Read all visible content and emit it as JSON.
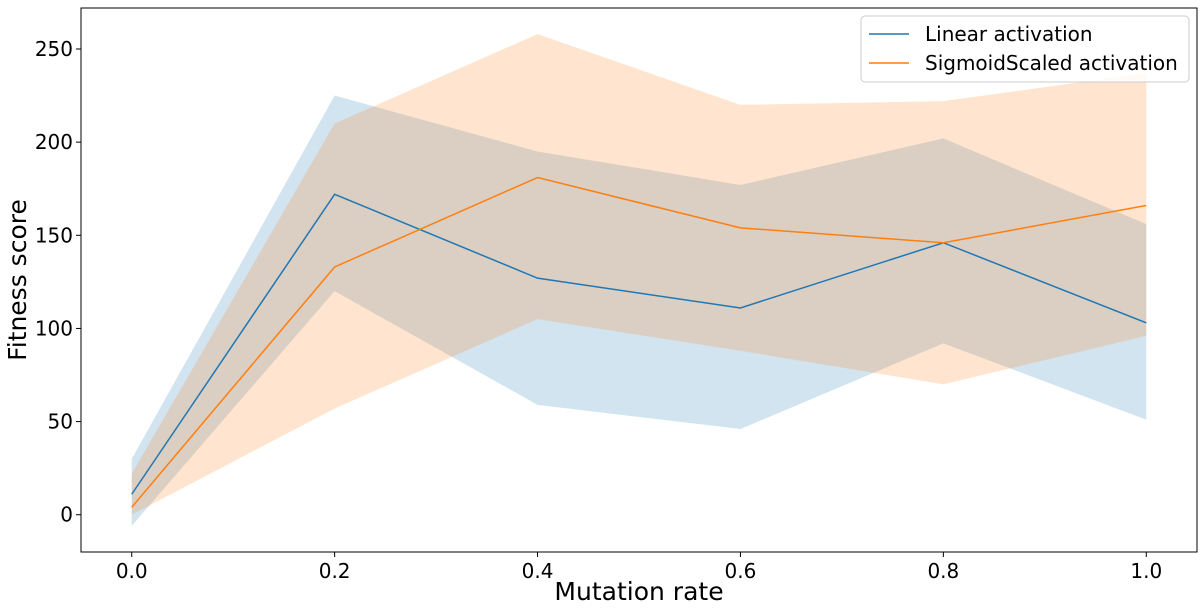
{
  "chart_data": {
    "type": "line",
    "title": "",
    "xlabel": "Mutation rate",
    "ylabel": "Fitness score",
    "x": [
      0.0,
      0.2,
      0.4,
      0.6,
      0.8,
      1.0
    ],
    "xlim": [
      -0.05,
      1.05
    ],
    "ylim": [
      -20,
      272
    ],
    "xticks": [
      0.0,
      0.2,
      0.4,
      0.6,
      0.8,
      1.0
    ],
    "xtick_labels": [
      "0.0",
      "0.2",
      "0.4",
      "0.6",
      "0.8",
      "1.0"
    ],
    "yticks": [
      0,
      50,
      100,
      150,
      200,
      250
    ],
    "ytick_labels": [
      "0",
      "50",
      "100",
      "150",
      "200",
      "250"
    ],
    "grid": false,
    "legend": {
      "placement": "top-right"
    },
    "series": [
      {
        "name": "Linear activation",
        "color": "#1f77b4",
        "values": [
          11,
          172,
          127,
          111,
          146,
          103
        ],
        "lower": [
          -6,
          120,
          59,
          46,
          92,
          51
        ],
        "upper": [
          30,
          225,
          195,
          177,
          202,
          156
        ]
      },
      {
        "name": "SigmoidScaled activation",
        "color": "#ff7f0e",
        "values": [
          4,
          133,
          181,
          154,
          146,
          166
        ],
        "lower": [
          0,
          57,
          105,
          88,
          70,
          96
        ],
        "upper": [
          22,
          210,
          258,
          220,
          222,
          237
        ]
      }
    ]
  }
}
